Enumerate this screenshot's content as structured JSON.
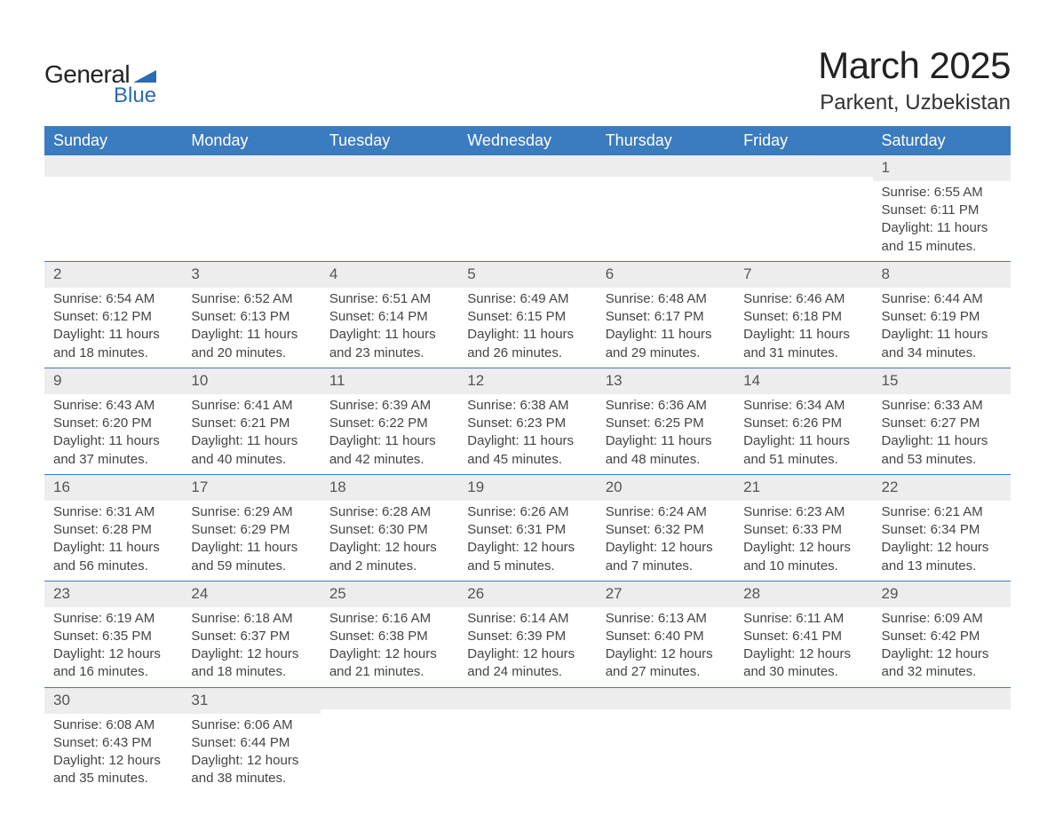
{
  "logo": {
    "text_general": "General",
    "text_blue": "Blue",
    "icon_color": "#2b6cb0"
  },
  "title": "March 2025",
  "location": "Parkent, Uzbekistan",
  "colors": {
    "header_bg": "#3b7bbf",
    "header_text": "#ffffff",
    "daynum_bg": "#ededed",
    "row_border": "#3b7bbf",
    "body_text": "#444444",
    "page_bg": "#ffffff"
  },
  "fonts": {
    "title_size_pt": 32,
    "location_size_pt": 18,
    "header_size_pt": 14,
    "body_size_pt": 11
  },
  "day_headers": [
    "Sunday",
    "Monday",
    "Tuesday",
    "Wednesday",
    "Thursday",
    "Friday",
    "Saturday"
  ],
  "weeks": [
    [
      {
        "day": "",
        "sunrise": "",
        "sunset": "",
        "daylight": ""
      },
      {
        "day": "",
        "sunrise": "",
        "sunset": "",
        "daylight": ""
      },
      {
        "day": "",
        "sunrise": "",
        "sunset": "",
        "daylight": ""
      },
      {
        "day": "",
        "sunrise": "",
        "sunset": "",
        "daylight": ""
      },
      {
        "day": "",
        "sunrise": "",
        "sunset": "",
        "daylight": ""
      },
      {
        "day": "",
        "sunrise": "",
        "sunset": "",
        "daylight": ""
      },
      {
        "day": "1",
        "sunrise": "Sunrise: 6:55 AM",
        "sunset": "Sunset: 6:11 PM",
        "daylight": "Daylight: 11 hours and 15 minutes."
      }
    ],
    [
      {
        "day": "2",
        "sunrise": "Sunrise: 6:54 AM",
        "sunset": "Sunset: 6:12 PM",
        "daylight": "Daylight: 11 hours and 18 minutes."
      },
      {
        "day": "3",
        "sunrise": "Sunrise: 6:52 AM",
        "sunset": "Sunset: 6:13 PM",
        "daylight": "Daylight: 11 hours and 20 minutes."
      },
      {
        "day": "4",
        "sunrise": "Sunrise: 6:51 AM",
        "sunset": "Sunset: 6:14 PM",
        "daylight": "Daylight: 11 hours and 23 minutes."
      },
      {
        "day": "5",
        "sunrise": "Sunrise: 6:49 AM",
        "sunset": "Sunset: 6:15 PM",
        "daylight": "Daylight: 11 hours and 26 minutes."
      },
      {
        "day": "6",
        "sunrise": "Sunrise: 6:48 AM",
        "sunset": "Sunset: 6:17 PM",
        "daylight": "Daylight: 11 hours and 29 minutes."
      },
      {
        "day": "7",
        "sunrise": "Sunrise: 6:46 AM",
        "sunset": "Sunset: 6:18 PM",
        "daylight": "Daylight: 11 hours and 31 minutes."
      },
      {
        "day": "8",
        "sunrise": "Sunrise: 6:44 AM",
        "sunset": "Sunset: 6:19 PM",
        "daylight": "Daylight: 11 hours and 34 minutes."
      }
    ],
    [
      {
        "day": "9",
        "sunrise": "Sunrise: 6:43 AM",
        "sunset": "Sunset: 6:20 PM",
        "daylight": "Daylight: 11 hours and 37 minutes."
      },
      {
        "day": "10",
        "sunrise": "Sunrise: 6:41 AM",
        "sunset": "Sunset: 6:21 PM",
        "daylight": "Daylight: 11 hours and 40 minutes."
      },
      {
        "day": "11",
        "sunrise": "Sunrise: 6:39 AM",
        "sunset": "Sunset: 6:22 PM",
        "daylight": "Daylight: 11 hours and 42 minutes."
      },
      {
        "day": "12",
        "sunrise": "Sunrise: 6:38 AM",
        "sunset": "Sunset: 6:23 PM",
        "daylight": "Daylight: 11 hours and 45 minutes."
      },
      {
        "day": "13",
        "sunrise": "Sunrise: 6:36 AM",
        "sunset": "Sunset: 6:25 PM",
        "daylight": "Daylight: 11 hours and 48 minutes."
      },
      {
        "day": "14",
        "sunrise": "Sunrise: 6:34 AM",
        "sunset": "Sunset: 6:26 PM",
        "daylight": "Daylight: 11 hours and 51 minutes."
      },
      {
        "day": "15",
        "sunrise": "Sunrise: 6:33 AM",
        "sunset": "Sunset: 6:27 PM",
        "daylight": "Daylight: 11 hours and 53 minutes."
      }
    ],
    [
      {
        "day": "16",
        "sunrise": "Sunrise: 6:31 AM",
        "sunset": "Sunset: 6:28 PM",
        "daylight": "Daylight: 11 hours and 56 minutes."
      },
      {
        "day": "17",
        "sunrise": "Sunrise: 6:29 AM",
        "sunset": "Sunset: 6:29 PM",
        "daylight": "Daylight: 11 hours and 59 minutes."
      },
      {
        "day": "18",
        "sunrise": "Sunrise: 6:28 AM",
        "sunset": "Sunset: 6:30 PM",
        "daylight": "Daylight: 12 hours and 2 minutes."
      },
      {
        "day": "19",
        "sunrise": "Sunrise: 6:26 AM",
        "sunset": "Sunset: 6:31 PM",
        "daylight": "Daylight: 12 hours and 5 minutes."
      },
      {
        "day": "20",
        "sunrise": "Sunrise: 6:24 AM",
        "sunset": "Sunset: 6:32 PM",
        "daylight": "Daylight: 12 hours and 7 minutes."
      },
      {
        "day": "21",
        "sunrise": "Sunrise: 6:23 AM",
        "sunset": "Sunset: 6:33 PM",
        "daylight": "Daylight: 12 hours and 10 minutes."
      },
      {
        "day": "22",
        "sunrise": "Sunrise: 6:21 AM",
        "sunset": "Sunset: 6:34 PM",
        "daylight": "Daylight: 12 hours and 13 minutes."
      }
    ],
    [
      {
        "day": "23",
        "sunrise": "Sunrise: 6:19 AM",
        "sunset": "Sunset: 6:35 PM",
        "daylight": "Daylight: 12 hours and 16 minutes."
      },
      {
        "day": "24",
        "sunrise": "Sunrise: 6:18 AM",
        "sunset": "Sunset: 6:37 PM",
        "daylight": "Daylight: 12 hours and 18 minutes."
      },
      {
        "day": "25",
        "sunrise": "Sunrise: 6:16 AM",
        "sunset": "Sunset: 6:38 PM",
        "daylight": "Daylight: 12 hours and 21 minutes."
      },
      {
        "day": "26",
        "sunrise": "Sunrise: 6:14 AM",
        "sunset": "Sunset: 6:39 PM",
        "daylight": "Daylight: 12 hours and 24 minutes."
      },
      {
        "day": "27",
        "sunrise": "Sunrise: 6:13 AM",
        "sunset": "Sunset: 6:40 PM",
        "daylight": "Daylight: 12 hours and 27 minutes."
      },
      {
        "day": "28",
        "sunrise": "Sunrise: 6:11 AM",
        "sunset": "Sunset: 6:41 PM",
        "daylight": "Daylight: 12 hours and 30 minutes."
      },
      {
        "day": "29",
        "sunrise": "Sunrise: 6:09 AM",
        "sunset": "Sunset: 6:42 PM",
        "daylight": "Daylight: 12 hours and 32 minutes."
      }
    ],
    [
      {
        "day": "30",
        "sunrise": "Sunrise: 6:08 AM",
        "sunset": "Sunset: 6:43 PM",
        "daylight": "Daylight: 12 hours and 35 minutes."
      },
      {
        "day": "31",
        "sunrise": "Sunrise: 6:06 AM",
        "sunset": "Sunset: 6:44 PM",
        "daylight": "Daylight: 12 hours and 38 minutes."
      },
      {
        "day": "",
        "sunrise": "",
        "sunset": "",
        "daylight": ""
      },
      {
        "day": "",
        "sunrise": "",
        "sunset": "",
        "daylight": ""
      },
      {
        "day": "",
        "sunrise": "",
        "sunset": "",
        "daylight": ""
      },
      {
        "day": "",
        "sunrise": "",
        "sunset": "",
        "daylight": ""
      },
      {
        "day": "",
        "sunrise": "",
        "sunset": "",
        "daylight": ""
      }
    ]
  ]
}
